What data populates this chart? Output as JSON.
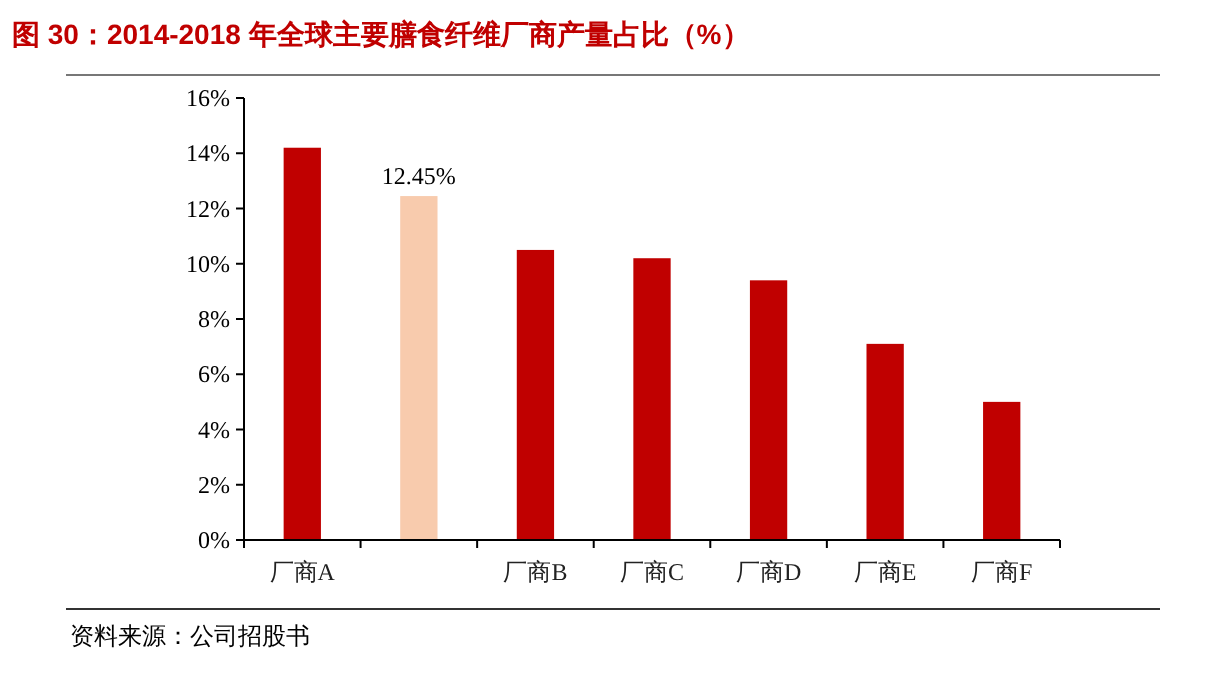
{
  "chart_data": {
    "type": "bar",
    "title": "图 30：2014-2018 年全球主要膳食纤维厂商产量占比（%）",
    "categories": [
      "厂商A",
      null,
      "厂商B",
      "厂商C",
      "厂商D",
      "厂商E",
      "厂商F"
    ],
    "values": [
      14.2,
      12.45,
      10.5,
      10.2,
      9.4,
      7.1,
      5.0
    ],
    "colors": [
      "#c00000",
      "#f8cbad",
      "#c00000",
      "#c00000",
      "#c00000",
      "#c00000",
      "#c00000"
    ],
    "value_labels": [
      null,
      "12.45%",
      null,
      null,
      null,
      null,
      null
    ],
    "ylim": [
      0,
      16
    ],
    "yticks": [
      {
        "value": 0,
        "label": "0%"
      },
      {
        "value": 2,
        "label": "2%"
      },
      {
        "value": 4,
        "label": "4%"
      },
      {
        "value": 6,
        "label": "6%"
      },
      {
        "value": 8,
        "label": "8%"
      },
      {
        "value": 10,
        "label": "10%"
      },
      {
        "value": 12,
        "label": "12%"
      },
      {
        "value": 14,
        "label": "14%"
      },
      {
        "value": 16,
        "label": "16%"
      }
    ],
    "grid": false,
    "annotations": [
      "资料来源：公司招股书"
    ]
  }
}
